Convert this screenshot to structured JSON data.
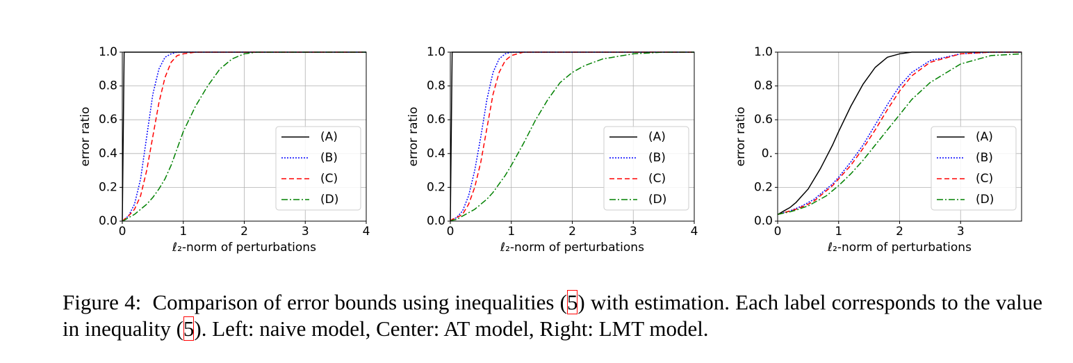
{
  "chart_data": [
    {
      "type": "line",
      "ylabel": "error ratio",
      "xlabel": "ℓ₂-norm of perturbations",
      "xlim": [
        0,
        4
      ],
      "ylim": [
        0,
        1
      ],
      "xticks": [
        0,
        1,
        2,
        3,
        4
      ],
      "yticks": [
        {
          "value": 0,
          "label": "0.0"
        },
        {
          "value": 0.2,
          "label": "0.2"
        },
        {
          "value": 0.4,
          "label": "0.4"
        },
        {
          "value": 0.6,
          "label": "0.6"
        },
        {
          "value": 0.8,
          "label": "0.8"
        },
        {
          "value": 1,
          "label": "1.0"
        }
      ],
      "grid": true,
      "legend": "lower right",
      "x": [
        0,
        0.03,
        0.1,
        0.2,
        0.3,
        0.4,
        0.5,
        0.6,
        0.7,
        0.8,
        0.9,
        1.0,
        1.2,
        1.4,
        1.6,
        1.8,
        2.0,
        2.2,
        2.5,
        3.0,
        3.5,
        4.0
      ],
      "series": [
        {
          "name": "(A)",
          "color": "#000000",
          "linestyle": "solid",
          "values": [
            0,
            1,
            1,
            1,
            1,
            1,
            1,
            1,
            1,
            1,
            1,
            1,
            1,
            1,
            1,
            1,
            1,
            1,
            1,
            1,
            1,
            1
          ]
        },
        {
          "name": "(B)",
          "color": "#0000ff",
          "linestyle": "dotted",
          "values": [
            0,
            0.01,
            0.03,
            0.1,
            0.25,
            0.5,
            0.75,
            0.9,
            0.97,
            0.99,
            1,
            1,
            1,
            1,
            1,
            1,
            1,
            1,
            1,
            1,
            1,
            1
          ]
        },
        {
          "name": "(C)",
          "color": "#ff0000",
          "linestyle": "dashed",
          "values": [
            0,
            0.01,
            0.03,
            0.07,
            0.15,
            0.3,
            0.5,
            0.7,
            0.85,
            0.94,
            0.98,
            0.99,
            1,
            1,
            1,
            1,
            1,
            1,
            1,
            1,
            1,
            1
          ]
        },
        {
          "name": "(D)",
          "color": "#008000",
          "linestyle": "dashdot",
          "values": [
            0,
            0.005,
            0.02,
            0.04,
            0.07,
            0.1,
            0.14,
            0.19,
            0.25,
            0.33,
            0.43,
            0.53,
            0.68,
            0.8,
            0.9,
            0.96,
            0.99,
            1,
            1,
            1,
            1,
            1
          ]
        }
      ]
    },
    {
      "type": "line",
      "ylabel": "error ratio",
      "xlabel": "ℓ₂-norm of perturbations",
      "xlim": [
        0,
        4
      ],
      "ylim": [
        0,
        1
      ],
      "xticks": [
        0,
        1,
        2,
        3,
        4
      ],
      "yticks": [
        {
          "value": 0,
          "label": "0.0"
        },
        {
          "value": 0.2,
          "label": "0.2"
        },
        {
          "value": 0.4,
          "label": "0.4"
        },
        {
          "value": 0.6,
          "label": "0.6"
        },
        {
          "value": 0.8,
          "label": "0.8"
        },
        {
          "value": 1,
          "label": "1.0"
        }
      ],
      "grid": true,
      "legend": "lower right",
      "x": [
        0,
        0.03,
        0.1,
        0.2,
        0.3,
        0.4,
        0.5,
        0.6,
        0.7,
        0.8,
        0.9,
        1.0,
        1.2,
        1.4,
        1.6,
        1.8,
        2.0,
        2.2,
        2.5,
        3.0,
        3.5,
        4.0
      ],
      "series": [
        {
          "name": "(A)",
          "color": "#000000",
          "linestyle": "solid",
          "values": [
            0,
            1,
            1,
            1,
            1,
            1,
            1,
            1,
            1,
            1,
            1,
            1,
            1,
            1,
            1,
            1,
            1,
            1,
            1,
            1,
            1,
            1
          ]
        },
        {
          "name": "(B)",
          "color": "#0000ff",
          "linestyle": "dotted",
          "values": [
            0,
            0.01,
            0.02,
            0.06,
            0.15,
            0.3,
            0.5,
            0.72,
            0.88,
            0.96,
            0.99,
            1,
            1,
            1,
            1,
            1,
            1,
            1,
            1,
            1,
            1,
            1
          ]
        },
        {
          "name": "(C)",
          "color": "#ff0000",
          "linestyle": "dashed",
          "values": [
            0,
            0.01,
            0.02,
            0.04,
            0.1,
            0.2,
            0.35,
            0.55,
            0.75,
            0.88,
            0.95,
            0.98,
            1,
            1,
            1,
            1,
            1,
            1,
            1,
            1,
            1,
            1
          ]
        },
        {
          "name": "(D)",
          "color": "#008000",
          "linestyle": "dashdot",
          "values": [
            0,
            0.005,
            0.01,
            0.03,
            0.05,
            0.07,
            0.1,
            0.13,
            0.17,
            0.22,
            0.27,
            0.33,
            0.46,
            0.6,
            0.72,
            0.82,
            0.88,
            0.92,
            0.96,
            0.99,
            1,
            1
          ]
        }
      ]
    },
    {
      "type": "line",
      "ylabel": "error ratio",
      "xlabel": "ℓ₂-norm of perturbations",
      "xlim": [
        0,
        4
      ],
      "ylim": [
        0,
        1
      ],
      "xticks": [
        0,
        1,
        2,
        3
      ],
      "yticks": [
        {
          "value": 0,
          "label": "0.0"
        },
        {
          "value": 0.2,
          "label": "0.2"
        },
        {
          "value": 0.4,
          "label": "0."
        },
        {
          "value": 0.6,
          "label": "0.6"
        },
        {
          "value": 0.8,
          "label": "0.8"
        },
        {
          "value": 1,
          "label": "1.0"
        }
      ],
      "grid": true,
      "legend": "lower right",
      "x": [
        0,
        0.03,
        0.1,
        0.2,
        0.3,
        0.4,
        0.5,
        0.6,
        0.7,
        0.8,
        0.9,
        1.0,
        1.2,
        1.4,
        1.6,
        1.8,
        2.0,
        2.2,
        2.5,
        3.0,
        3.5,
        4.0
      ],
      "series": [
        {
          "name": "(A)",
          "color": "#000000",
          "linestyle": "solid",
          "values": [
            0.04,
            0.045,
            0.06,
            0.08,
            0.11,
            0.15,
            0.19,
            0.25,
            0.31,
            0.38,
            0.45,
            0.53,
            0.68,
            0.81,
            0.91,
            0.97,
            0.99,
            1,
            1,
            1,
            1,
            1
          ]
        },
        {
          "name": "(B)",
          "color": "#0000ff",
          "linestyle": "dotted",
          "values": [
            0.04,
            0.042,
            0.05,
            0.06,
            0.075,
            0.09,
            0.11,
            0.13,
            0.16,
            0.19,
            0.22,
            0.26,
            0.35,
            0.45,
            0.57,
            0.69,
            0.8,
            0.88,
            0.95,
            0.99,
            1,
            1
          ]
        },
        {
          "name": "(C)",
          "color": "#ff0000",
          "linestyle": "dashed",
          "values": [
            0.04,
            0.042,
            0.05,
            0.06,
            0.07,
            0.085,
            0.1,
            0.12,
            0.15,
            0.18,
            0.21,
            0.25,
            0.33,
            0.43,
            0.54,
            0.66,
            0.77,
            0.86,
            0.94,
            0.99,
            1,
            1
          ]
        },
        {
          "name": "(D)",
          "color": "#008000",
          "linestyle": "dashdot",
          "values": [
            0.04,
            0.042,
            0.048,
            0.055,
            0.065,
            0.078,
            0.09,
            0.11,
            0.13,
            0.15,
            0.18,
            0.21,
            0.28,
            0.36,
            0.45,
            0.54,
            0.63,
            0.72,
            0.82,
            0.93,
            0.98,
            0.99
          ]
        }
      ]
    }
  ],
  "caption": {
    "label": "Figure 4:",
    "parts": [
      "Comparison of error bounds using inequalities (",
      "5",
      ") with estimation. Each label corresponds to the value in inequality (",
      "5",
      "). Left: naive model, Center: AT model, Right: LMT model."
    ]
  }
}
